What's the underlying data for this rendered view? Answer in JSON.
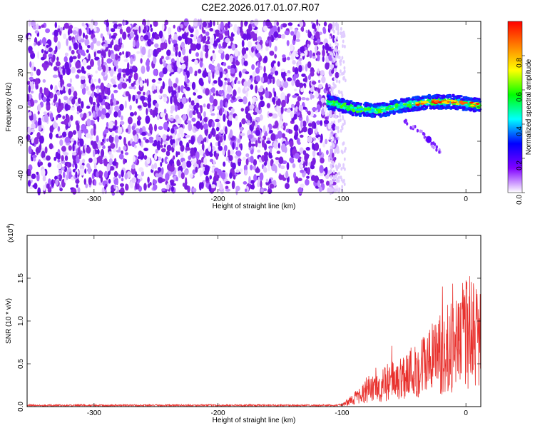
{
  "title": "C2E2.2026.017.01.07.R07",
  "chart_data": [
    {
      "type": "heatmap",
      "xlabel": "Height of straight line (km)",
      "ylabel": "Frequency (Hz)",
      "xlim": [
        -354,
        12
      ],
      "ylim": [
        -50,
        50
      ],
      "xticks": [
        -300,
        -200,
        -100,
        0
      ],
      "yticks": [
        -40,
        -20,
        0,
        20,
        40
      ],
      "noise_region_x": [
        -354,
        -104
      ],
      "signal_band": {
        "x": [
          -112,
          -90,
          -70,
          -50,
          -30,
          -10,
          12
        ],
        "freq_center": [
          3,
          -1,
          -2,
          1,
          3,
          3,
          1
        ],
        "freq_halfwidth": 4
      },
      "echo_track": {
        "x": [
          -50,
          -35,
          -20
        ],
        "freq": [
          -8,
          -16,
          -27
        ]
      },
      "colorbar": {
        "label": "Normalized spectral amplitude",
        "range": [
          0,
          1
        ],
        "ticks": [
          0.0,
          0.2,
          0.4,
          0.6,
          0.8
        ],
        "tick_labels": [
          "0.0",
          "0.2",
          "0.4",
          "0.6",
          "0.8"
        ],
        "colormap": [
          "#ffffff",
          "#8000ff",
          "#0000ff",
          "#00ffff",
          "#00ff00",
          "#ffff00",
          "#ff8000",
          "#ff0000"
        ]
      }
    },
    {
      "type": "line",
      "xlabel": "Height of straight line (km)",
      "ylabel": "SNR (10 * v/v)",
      "y_multiplier_label": "(x10",
      "y_multiplier_exp": "4",
      "xlim": [
        -354,
        12
      ],
      "ylim": [
        0,
        2.0
      ],
      "xticks": [
        -300,
        -200,
        -100,
        0
      ],
      "yticks": [
        0.0,
        0.5,
        1.0,
        1.5
      ],
      "ytick_labels": [
        "0.0",
        "0.5",
        "1.0",
        "1.5"
      ],
      "series": [
        {
          "color": "#e8302c",
          "x": [
            -354,
            -300,
            -250,
            -200,
            -150,
            -110,
            -100,
            -95,
            -90,
            -85,
            -80,
            -75,
            -70,
            -65,
            -60,
            -55,
            -50,
            -45,
            -40,
            -35,
            -30,
            -25,
            -20,
            -15,
            -10,
            -5,
            0,
            5,
            10,
            12
          ],
          "y": [
            0.01,
            0.01,
            0.01,
            0.01,
            0.01,
            0.01,
            0.03,
            0.08,
            0.14,
            0.22,
            0.3,
            0.3,
            0.32,
            0.4,
            0.45,
            0.45,
            0.55,
            0.6,
            0.62,
            0.7,
            0.8,
            0.85,
            0.9,
            1.0,
            1.1,
            1.2,
            1.25,
            1.3,
            1.2,
            1.1
          ]
        }
      ]
    }
  ]
}
